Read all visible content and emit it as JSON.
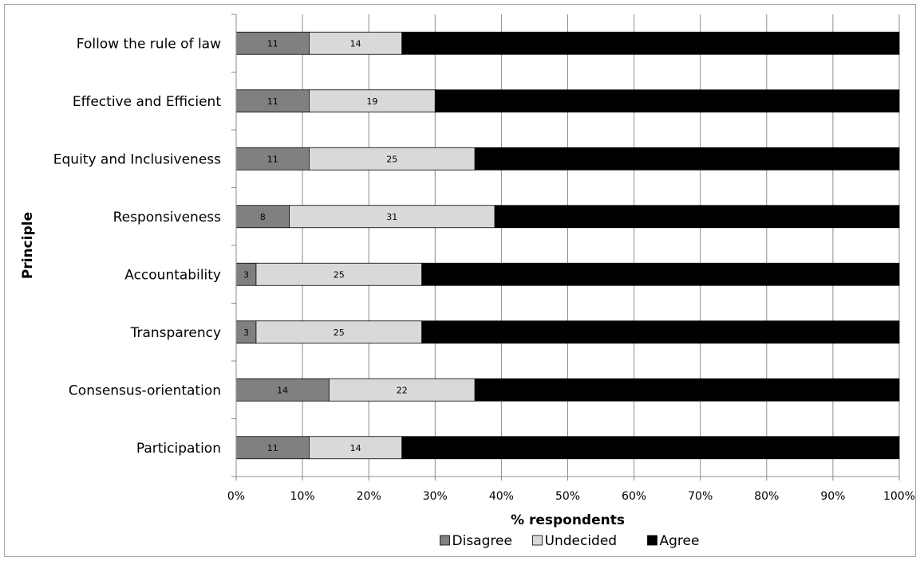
{
  "chart_data": {
    "type": "bar",
    "orientation": "horizontal",
    "stacked": true,
    "percent_stacked": true,
    "title": "",
    "xlabel": "% respondents",
    "ylabel": "Principle",
    "xlim": [
      0,
      100
    ],
    "x_ticks": [
      "0%",
      "10%",
      "20%",
      "30%",
      "40%",
      "50%",
      "60%",
      "70%",
      "80%",
      "90%",
      "100%"
    ],
    "grid": "vertical",
    "legend": "bottom",
    "categories": [
      "Follow the rule of law",
      "Effective and Efficient",
      "Equity and Inclusiveness",
      "Responsiveness",
      "Accountability",
      "Transparency",
      "Consensus-orientation",
      "Participation"
    ],
    "series": [
      {
        "name": "Disagree",
        "color": "#808080",
        "values": [
          11,
          11,
          11,
          8,
          3,
          3,
          14,
          11
        ]
      },
      {
        "name": "Undecided",
        "color": "#d9d9d9",
        "values": [
          14,
          19,
          25,
          31,
          25,
          25,
          22,
          14
        ]
      },
      {
        "name": "Agree",
        "color": "#000000",
        "values": [
          75,
          70,
          64,
          61,
          72,
          72,
          64,
          75
        ]
      }
    ],
    "labelled_series": [
      "Disagree",
      "Undecided"
    ]
  }
}
